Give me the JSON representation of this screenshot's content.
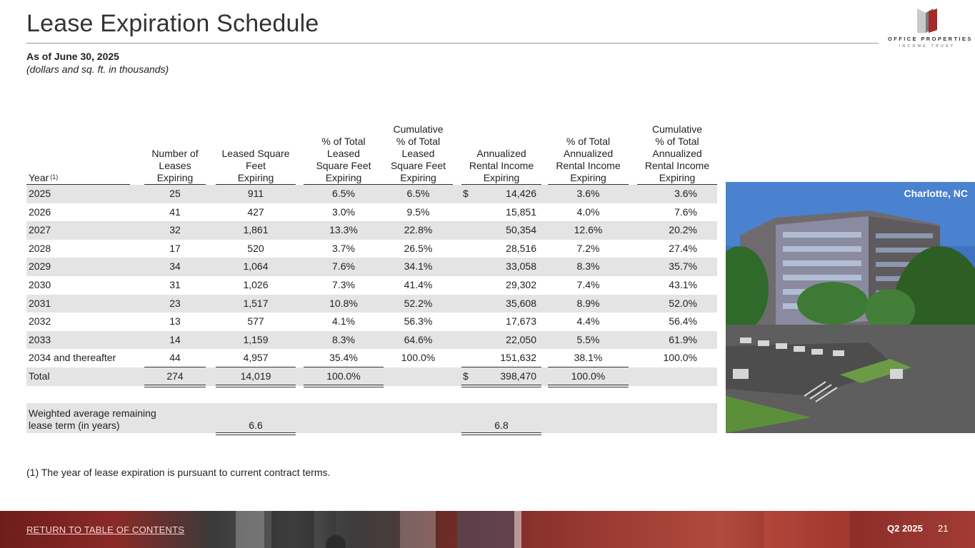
{
  "page": {
    "title": "Lease Expiration Schedule",
    "as_of": "As of June 30, 2025",
    "units_note": "(dollars and sq. ft. in thousands)"
  },
  "logo": {
    "name": "OFFICE PROPERTIES",
    "sub": "INCOME TRUST"
  },
  "table": {
    "headers": {
      "year": "Year",
      "year_sup": "(1)",
      "num_leases": [
        "Number of",
        "Leases",
        "Expiring"
      ],
      "leased_sqft": [
        "Leased Square",
        "Feet",
        "Expiring"
      ],
      "pct_sqft": [
        "% of Total",
        "Leased",
        "Square Feet",
        "Expiring"
      ],
      "cum_pct_sqft": [
        "Cumulative",
        "% of Total",
        "Leased",
        "Square Feet",
        "Expiring"
      ],
      "annual_rent": [
        "Annualized",
        "Rental Income",
        "Expiring"
      ],
      "pct_rent": [
        "% of Total",
        "Annualized",
        "Rental Income",
        "Expiring"
      ],
      "cum_pct_rent": [
        "Cumulative",
        "% of Total",
        "Annualized",
        "Rental Income",
        "Expiring"
      ]
    },
    "rows": [
      {
        "year": "2025",
        "leases": "25",
        "sqft": "911",
        "pct_sqft": "6.5%",
        "cum_sqft": "6.5%",
        "dollar": "$",
        "rent": "14,426",
        "pct_rent": "3.6%",
        "cum_rent": "3.6%"
      },
      {
        "year": "2026",
        "leases": "41",
        "sqft": "427",
        "pct_sqft": "3.0%",
        "cum_sqft": "9.5%",
        "dollar": "",
        "rent": "15,851",
        "pct_rent": "4.0%",
        "cum_rent": "7.6%"
      },
      {
        "year": "2027",
        "leases": "32",
        "sqft": "1,861",
        "pct_sqft": "13.3%",
        "cum_sqft": "22.8%",
        "dollar": "",
        "rent": "50,354",
        "pct_rent": "12.6%",
        "cum_rent": "20.2%"
      },
      {
        "year": "2028",
        "leases": "17",
        "sqft": "520",
        "pct_sqft": "3.7%",
        "cum_sqft": "26.5%",
        "dollar": "",
        "rent": "28,516",
        "pct_rent": "7.2%",
        "cum_rent": "27.4%"
      },
      {
        "year": "2029",
        "leases": "34",
        "sqft": "1,064",
        "pct_sqft": "7.6%",
        "cum_sqft": "34.1%",
        "dollar": "",
        "rent": "33,058",
        "pct_rent": "8.3%",
        "cum_rent": "35.7%"
      },
      {
        "year": "2030",
        "leases": "31",
        "sqft": "1,026",
        "pct_sqft": "7.3%",
        "cum_sqft": "41.4%",
        "dollar": "",
        "rent": "29,302",
        "pct_rent": "7.4%",
        "cum_rent": "43.1%"
      },
      {
        "year": "2031",
        "leases": "23",
        "sqft": "1,517",
        "pct_sqft": "10.8%",
        "cum_sqft": "52.2%",
        "dollar": "",
        "rent": "35,608",
        "pct_rent": "8.9%",
        "cum_rent": "52.0%"
      },
      {
        "year": "2032",
        "leases": "13",
        "sqft": "577",
        "pct_sqft": "4.1%",
        "cum_sqft": "56.3%",
        "dollar": "",
        "rent": "17,673",
        "pct_rent": "4.4%",
        "cum_rent": "56.4%"
      },
      {
        "year": "2033",
        "leases": "14",
        "sqft": "1,159",
        "pct_sqft": "8.3%",
        "cum_sqft": "64.6%",
        "dollar": "",
        "rent": "22,050",
        "pct_rent": "5.5%",
        "cum_rent": "61.9%"
      },
      {
        "year": "2034 and thereafter",
        "leases": "44",
        "sqft": "4,957",
        "pct_sqft": "35.4%",
        "cum_sqft": "100.0%",
        "dollar": "",
        "rent": "151,632",
        "pct_rent": "38.1%",
        "cum_rent": "100.0%"
      },
      {
        "year": "Total",
        "leases": "274",
        "sqft": "14,019",
        "pct_sqft": "100.0%",
        "cum_sqft": "",
        "dollar": "$",
        "rent": "398,470",
        "pct_rent": "100.0%",
        "cum_rent": ""
      }
    ],
    "weighted": {
      "label_line1": "Weighted average remaining",
      "label_line2": "lease term (in years)",
      "by_sqft": "6.6",
      "by_rent": "6.8"
    }
  },
  "footnote": "(1)  The year of lease expiration is pursuant to current contract terms.",
  "photo": {
    "caption": "Charlotte, NC"
  },
  "footer": {
    "link": "RETURN TO TABLE OF CONTENTS",
    "quarter": "Q2 2025",
    "page_number": "21"
  }
}
